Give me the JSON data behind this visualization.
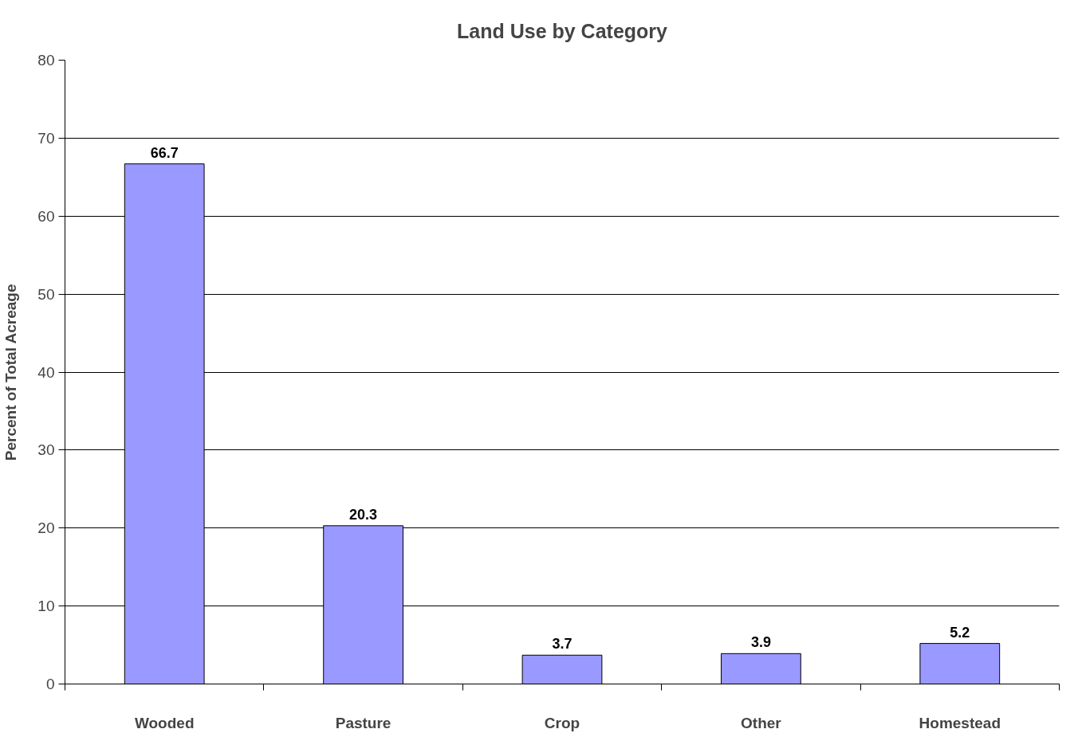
{
  "chart_data": {
    "type": "bar",
    "title": "Land Use by Category",
    "ylabel": "Percent of Total Acreage",
    "categories": [
      "Wooded",
      "Pasture",
      "Crop",
      "Other",
      "Homestead"
    ],
    "values": [
      66.7,
      20.3,
      3.7,
      3.9,
      5.2
    ],
    "color": "#9999ff",
    "ylim": [
      0,
      80
    ],
    "yticks": [
      0,
      10,
      20,
      30,
      40,
      50,
      60,
      70,
      80
    ],
    "grid": "y",
    "data_labels": true
  }
}
